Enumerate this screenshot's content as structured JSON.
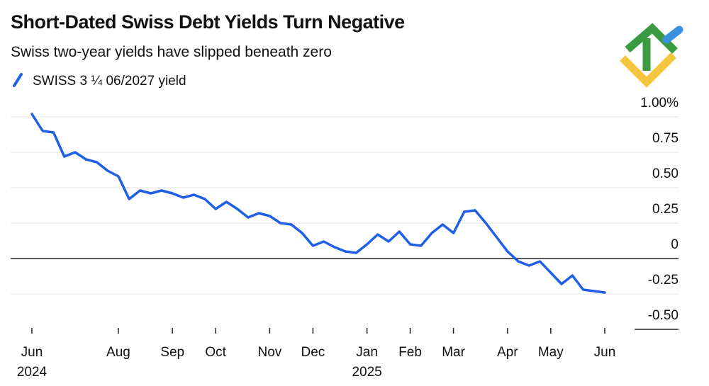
{
  "chart_data": {
    "type": "line",
    "title": "Short-Dated Swiss Debt Yields Turn Negative",
    "subtitle": "Swiss two-year yields have slipped beneath zero",
    "categories": [
      "Jun",
      null,
      null,
      null,
      null,
      null,
      null,
      null,
      "Aug",
      null,
      null,
      null,
      null,
      "Sep",
      null,
      null,
      null,
      "Oct",
      null,
      null,
      null,
      null,
      "Nov",
      null,
      null,
      null,
      "Dec",
      null,
      null,
      null,
      null,
      "Jan",
      null,
      null,
      null,
      "Feb",
      null,
      null,
      null,
      "Mar",
      null,
      null,
      null,
      null,
      "Apr",
      null,
      null,
      null,
      "May",
      null,
      null,
      null,
      null,
      "Jun"
    ],
    "year_labels": [
      "2024",
      "2025"
    ],
    "series": [
      {
        "name": "SWISS 3 ¼ 06/2027 yield",
        "color": "#1f5fe6",
        "values": [
          1.02,
          0.9,
          0.89,
          0.72,
          0.75,
          0.7,
          0.68,
          0.62,
          0.58,
          0.42,
          0.48,
          0.46,
          0.48,
          0.46,
          0.43,
          0.45,
          0.42,
          0.35,
          0.4,
          0.35,
          0.29,
          0.32,
          0.3,
          0.25,
          0.24,
          0.18,
          0.09,
          0.12,
          0.08,
          0.05,
          0.04,
          0.1,
          0.17,
          0.12,
          0.19,
          0.1,
          0.09,
          0.18,
          0.24,
          0.18,
          0.33,
          0.34,
          0.25,
          0.15,
          0.05,
          -0.02,
          -0.05,
          -0.02,
          -0.1,
          -0.18,
          -0.12,
          -0.22,
          -0.23,
          -0.24
        ]
      }
    ],
    "ylim": [
      -0.5,
      1.0
    ],
    "yticks": [
      {
        "value": 1.0,
        "label": "1.00%"
      },
      0.75,
      {
        "value": 0.5,
        "label": "0.50"
      },
      0.25,
      0,
      -0.25,
      {
        "value": -0.5,
        "label": "-0.50"
      }
    ],
    "grid": true
  }
}
